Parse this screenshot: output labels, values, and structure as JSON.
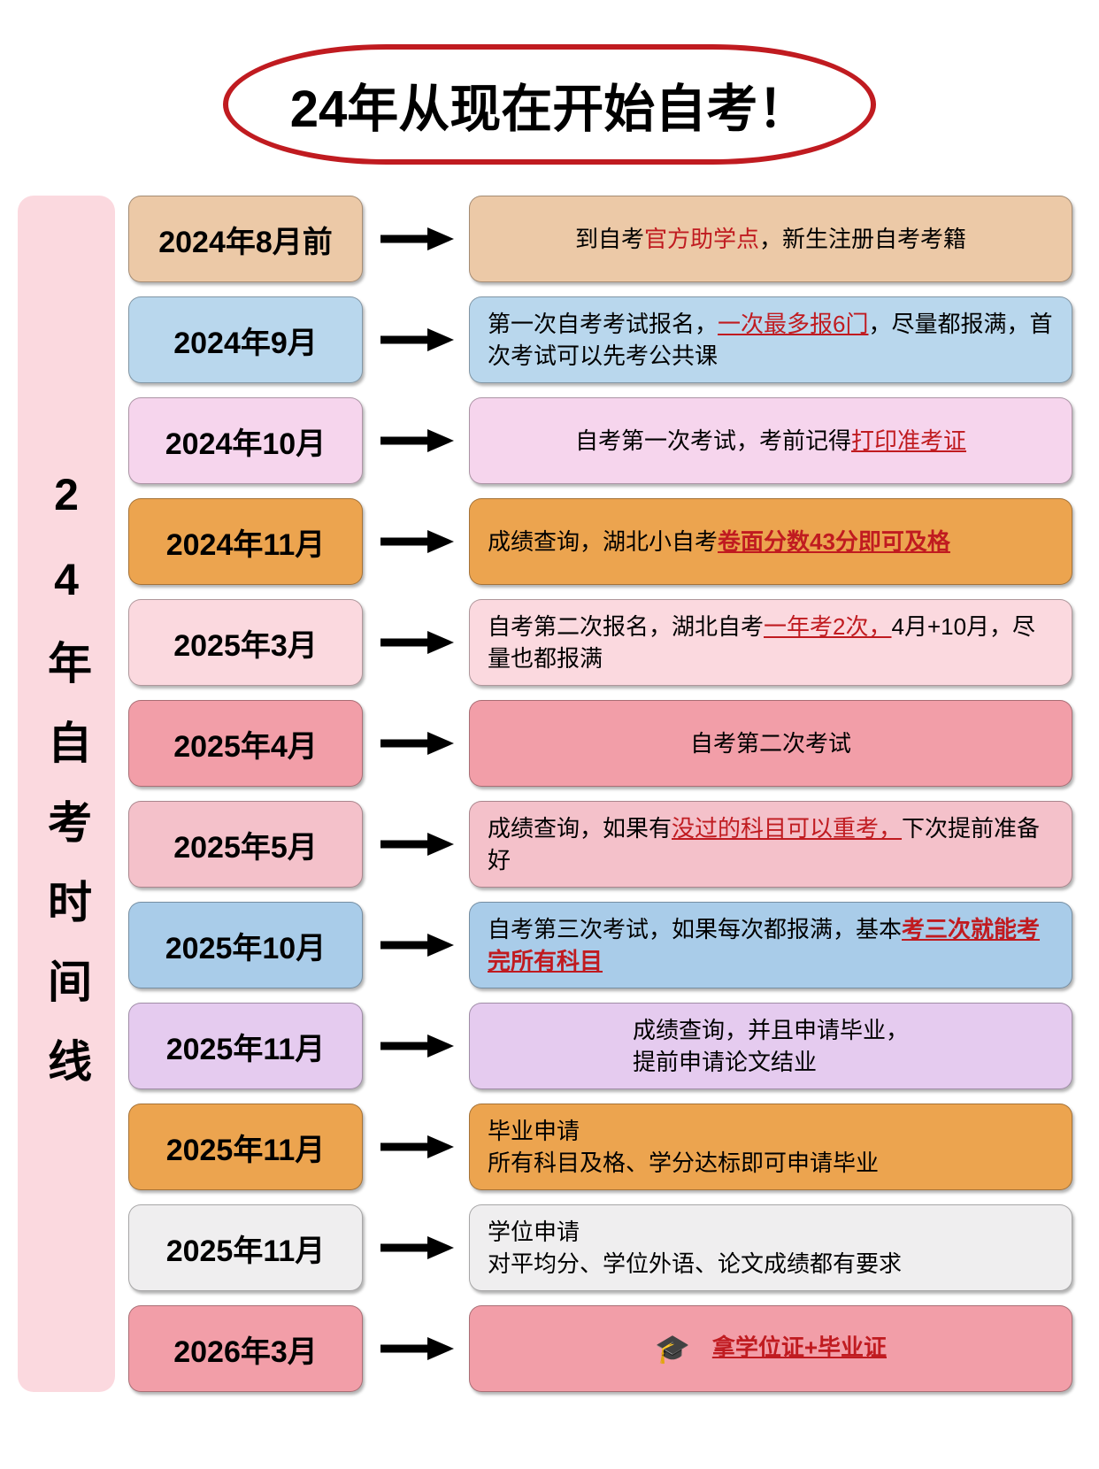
{
  "header": {
    "title": "24年从现在开始自考！",
    "border_color": "#c01b20",
    "text_color": "#000000",
    "fontsize": 58
  },
  "sidebar": {
    "text": "24年自考时间线",
    "bg_color": "#fbd9df",
    "fontsize": 50
  },
  "colors": {
    "tan": "#ecc9a7",
    "lightblue": "#b9d7ed",
    "pink_light": "#f6d5ed",
    "orange": "#eca44f",
    "pink_pale": "#fbd9df",
    "salmon": "#f29ea8",
    "pink_soft": "#f4c1ca",
    "blue_soft": "#a9cce9",
    "lavender": "#e5cbef",
    "orange2": "#eca44f",
    "grey": "#efeeef",
    "pink_bright": "#f29ea8",
    "highlight_red": "#c01b20",
    "arrow": "#000000"
  },
  "timeline": [
    {
      "date": "2024年8月前",
      "date_bg": "#ecc9a7",
      "desc_bg": "#ecc9a7",
      "center": true,
      "segments": [
        {
          "t": "到自考"
        },
        {
          "t": "官方助学点",
          "cls": "red"
        },
        {
          "t": "，新生注册自考考籍"
        }
      ]
    },
    {
      "date": "2024年9月",
      "date_bg": "#b9d7ed",
      "desc_bg": "#b9d7ed",
      "segments": [
        {
          "t": "第一次自考考试报名，"
        },
        {
          "t": "一次最多报6门",
          "cls": "red-u"
        },
        {
          "t": "，尽量都报满，首次考试可以先考公共课"
        }
      ]
    },
    {
      "date": "2024年10月",
      "date_bg": "#f6d5ed",
      "desc_bg": "#f6d5ed",
      "center": true,
      "segments": [
        {
          "t": "自考第一次考试，考前记得"
        },
        {
          "t": "打印准考证",
          "cls": "red-u"
        }
      ]
    },
    {
      "date": "2024年11月",
      "date_bg": "#eca44f",
      "desc_bg": "#eca44f",
      "segments": [
        {
          "t": "成绩查询，湖北小自考"
        },
        {
          "t": "卷面分数43分即可及格",
          "cls": "red-bu"
        }
      ]
    },
    {
      "date": "2025年3月",
      "date_bg": "#fbd9df",
      "desc_bg": "#fbd9df",
      "segments": [
        {
          "t": "自考第二次报名，湖北自考"
        },
        {
          "t": "一年考2次，",
          "cls": "red-u"
        },
        {
          "t": "4月+10月，尽量也都报满"
        }
      ]
    },
    {
      "date": "2025年4月",
      "date_bg": "#f29ea8",
      "desc_bg": "#f29ea8",
      "center": true,
      "segments": [
        {
          "t": "自考第二次考试"
        }
      ]
    },
    {
      "date": "2025年5月",
      "date_bg": "#f4c1ca",
      "desc_bg": "#f4c1ca",
      "segments": [
        {
          "t": "成绩查询，如果有"
        },
        {
          "t": "没过的科目可以重考，",
          "cls": "red-u"
        },
        {
          "t": "下次提前准备好"
        }
      ]
    },
    {
      "date": "2025年10月",
      "date_bg": "#a9cce9",
      "desc_bg": "#a9cce9",
      "segments": [
        {
          "t": "自考第三次考试，如果每次都报满，基本"
        },
        {
          "t": "考三次就能考完所有科目",
          "cls": "red-bu"
        }
      ]
    },
    {
      "date": "2025年11月",
      "date_bg": "#e5cbef",
      "desc_bg": "#e5cbef",
      "center": true,
      "segments": [
        {
          "t": "成绩查询，并且申请毕业，"
        },
        {
          "br": true
        },
        {
          "t": "提前申请论文结业"
        }
      ]
    },
    {
      "date": "2025年11月",
      "date_bg": "#eca44f",
      "desc_bg": "#eca44f",
      "segments": [
        {
          "t": "毕业申请"
        },
        {
          "br": true
        },
        {
          "t": "所有科目及格、学分达标即可申请毕业"
        }
      ]
    },
    {
      "date": "2025年11月",
      "date_bg": "#efeeef",
      "desc_bg": "#efeeef",
      "segments": [
        {
          "t": "学位申请"
        },
        {
          "br": true
        },
        {
          "t": "对平均分、学位外语、论文成绩都有要求"
        }
      ]
    },
    {
      "date": "2026年3月",
      "date_bg": "#f29ea8",
      "desc_bg": "#f29ea8",
      "center": true,
      "icon": "graduation-cap",
      "segments": [
        {
          "t": "拿学位证+毕业证",
          "cls": "red-bu"
        }
      ]
    }
  ]
}
